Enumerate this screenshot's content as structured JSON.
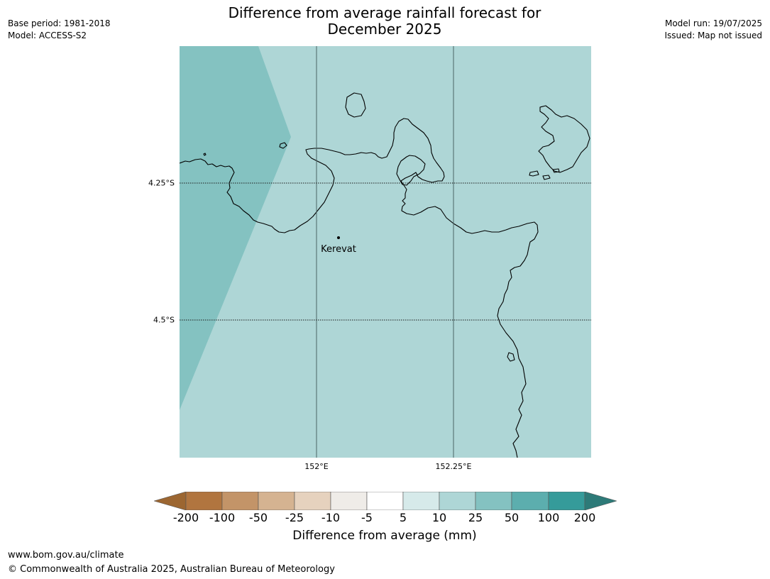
{
  "header": {
    "title_line1": "Difference from average rainfall forecast for",
    "title_line2": "December 2025",
    "base_period": "Base period: 1981-2018",
    "model": "Model: ACCESS-S2",
    "model_run": "Model run: 19/07/2025",
    "issued": "Issued: Map not issued"
  },
  "map": {
    "place_label": "Kerevat",
    "lat_ticks": [
      "4.25°S",
      "4.5°S"
    ],
    "lon_ticks": [
      "152°E",
      "152.25°E"
    ],
    "ocean_color": "#aed6d6",
    "zone_color": "#84c2c1",
    "coast_color": "#000000"
  },
  "legend": {
    "title": "Difference from average (mm)",
    "labels": [
      "-200",
      "-100",
      "-50",
      "-25",
      "-10",
      "-5",
      "5",
      "10",
      "25",
      "50",
      "100",
      "200"
    ],
    "colors": [
      "#9c6631",
      "#b1753f",
      "#c39468",
      "#d5b391",
      "#e6d2be",
      "#efece8",
      "#ffffff",
      "#d6eaea",
      "#aed6d6",
      "#84c2c1",
      "#5caeae",
      "#359b9a",
      "#2d7a78"
    ]
  },
  "footer": {
    "website": "www.bom.gov.au/climate",
    "copyright": "© Commonwealth of Australia 2025, Australian Bureau of Meteorology"
  }
}
